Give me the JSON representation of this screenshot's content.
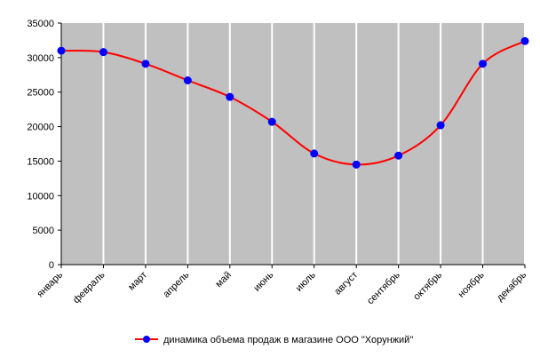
{
  "chart_data": {
    "type": "line",
    "categories": [
      "январь",
      "февраль",
      "март",
      "апрель",
      "май",
      "июнь",
      "июль",
      "август",
      "сентябрь",
      "октябрь",
      "ноябрь",
      "декабрь"
    ],
    "series": [
      {
        "name": "динамика объема продаж в магазине ООО \"Хорунжий\"",
        "values": [
          31000,
          30800,
          29100,
          26700,
          24300,
          20700,
          16100,
          14500,
          15800,
          20200,
          29100,
          32400
        ],
        "line_color": "#ff0000",
        "marker_color": "#0000ff"
      }
    ],
    "ylim": [
      0,
      35000
    ],
    "y_ticks": [
      0,
      5000,
      10000,
      15000,
      20000,
      25000,
      30000,
      35000
    ],
    "grid": true,
    "grid_orientation": "vertical",
    "grid_color": "#ffffff",
    "plot_background": "#c0c0c0",
    "smooth": true,
    "legend_position": "bottom"
  }
}
